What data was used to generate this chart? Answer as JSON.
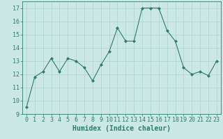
{
  "x": [
    0,
    1,
    2,
    3,
    4,
    5,
    6,
    7,
    8,
    9,
    10,
    11,
    12,
    13,
    14,
    15,
    16,
    17,
    18,
    19,
    20,
    21,
    22,
    23
  ],
  "y": [
    9.5,
    11.8,
    12.2,
    13.2,
    12.2,
    13.2,
    13.0,
    12.5,
    11.5,
    12.7,
    13.7,
    15.5,
    14.5,
    14.5,
    17.0,
    17.0,
    17.0,
    15.3,
    14.5,
    12.5,
    12.0,
    12.2,
    11.9,
    13.0
  ],
  "xlabel": "Humidex (Indice chaleur)",
  "ylim": [
    9,
    17.5
  ],
  "xlim": [
    -0.5,
    23.5
  ],
  "yticks": [
    9,
    10,
    11,
    12,
    13,
    14,
    15,
    16,
    17
  ],
  "xticks": [
    0,
    1,
    2,
    3,
    4,
    5,
    6,
    7,
    8,
    9,
    10,
    11,
    12,
    13,
    14,
    15,
    16,
    17,
    18,
    19,
    20,
    21,
    22,
    23
  ],
  "line_color": "#2d7a6e",
  "marker_color": "#2d7a6e",
  "bg_color": "#cce8e5",
  "grid_color": "#aad4d0",
  "xlabel_fontsize": 7,
  "tick_fontsize": 6
}
